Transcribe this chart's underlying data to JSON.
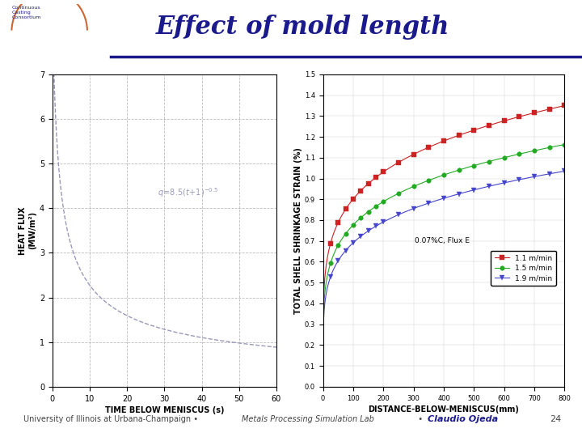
{
  "title": "Effect of mold length",
  "title_color": "#1a1a8c",
  "bg_color": "#ffffff",
  "page_number": "24",
  "left_plot": {
    "xlabel": "TIME BELOW MENISCUS (s)",
    "ylabel": "HEAT FLUX\n(MW/m²)",
    "xlim": [
      0,
      60
    ],
    "ylim": [
      0,
      7
    ],
    "xticks": [
      0,
      10,
      20,
      30,
      40,
      50,
      60
    ],
    "yticks": [
      0,
      1,
      2,
      3,
      4,
      5,
      6,
      7
    ],
    "curve_color": "#9999bb",
    "grid_color": "#aaaaaa",
    "grid_style": "--"
  },
  "right_plot": {
    "xlabel": "DISTANCE-BELOW-MENISCUS(mm)",
    "ylabel": "TOTAL SHELL SHRINKAGE STRAIN (%)",
    "xlim": [
      0,
      800
    ],
    "ylim": [
      0,
      1.5
    ],
    "xticks": [
      0,
      100,
      200,
      300,
      400,
      500,
      600,
      700,
      800
    ],
    "yticks": [
      0,
      0.1,
      0.2,
      0.3,
      0.4,
      0.5,
      0.6,
      0.7,
      0.8,
      0.9,
      1.0,
      1.1,
      1.2,
      1.3,
      1.4,
      1.5
    ],
    "annotation": "0.07%C, Flux E",
    "legend_entries": [
      "1.1 m/min",
      "1.5 m/min",
      "1.9 m/min"
    ],
    "series_colors": [
      "#cc2222",
      "#22aa22",
      "#4444cc"
    ],
    "series_markers": [
      "s",
      "o",
      "v"
    ],
    "grid_color": "#aaaaaa",
    "grid_style": "-",
    "strain_params": [
      {
        "A": 0.148,
        "k": 0.018
      },
      {
        "A": 0.13,
        "k": 0.018
      },
      {
        "A": 0.115,
        "k": 0.018
      }
    ]
  }
}
